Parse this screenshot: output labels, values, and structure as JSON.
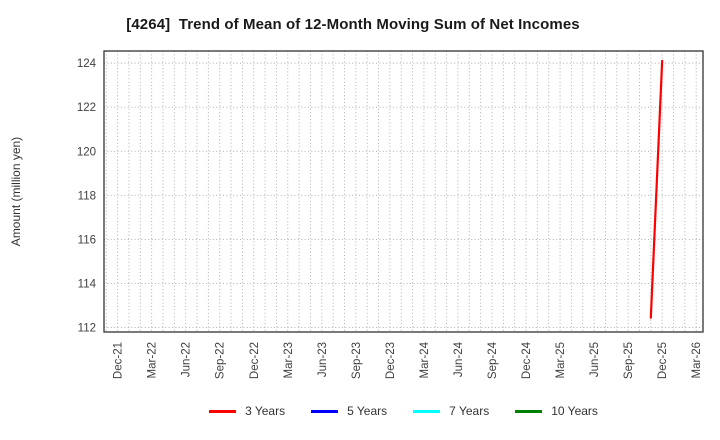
{
  "figure": {
    "title": "[4264]  Trend of Mean of 12-Month Moving Sum of Net Incomes",
    "background": "#ffffff"
  },
  "chart_data": {
    "type": "line",
    "title": "[4264]  Trend of Mean of 12-Month Moving Sum of Net Incomes",
    "xlabel": "",
    "ylabel": "Amount (million yen)",
    "x_tick_labels": [
      "Dec-21",
      "Mar-22",
      "Jun-22",
      "Sep-22",
      "Dec-22",
      "Mar-23",
      "Jun-23",
      "Sep-23",
      "Dec-23",
      "Mar-24",
      "Jun-24",
      "Sep-24",
      "Dec-24",
      "Mar-25",
      "Jun-25",
      "Sep-25",
      "Dec-25",
      "Mar-26"
    ],
    "months_between_x_ticks": 3,
    "x_start_label": "Dec-21",
    "xlim_month_index": [
      -1.2,
      51.6
    ],
    "y_ticks": [
      112,
      114,
      116,
      118,
      120,
      122,
      124
    ],
    "ylim": [
      111.8,
      124.55
    ],
    "grid": true,
    "grid_style": "dotted",
    "legend_position": "bottom-center",
    "series": [
      {
        "name": "3 Years",
        "color": "#ff0000",
        "points": [
          {
            "label": "Nov-25",
            "month_index": 47,
            "value": 112.45
          },
          {
            "label": "Dec-25",
            "month_index": 48,
            "value": 124.1
          }
        ]
      },
      {
        "name": "5 Years",
        "color": "#0000ff",
        "points": []
      },
      {
        "name": "7 Years",
        "color": "#00ffff",
        "points": []
      },
      {
        "name": "10 Years",
        "color": "#008000",
        "points": []
      }
    ]
  },
  "colors": {
    "grid": "#a8a8a8",
    "axis_border": "#333333",
    "tick_text": "#404040",
    "axis_label_text": "#333333",
    "title_text": "#1a1a1a",
    "legend_text": "#333333"
  }
}
